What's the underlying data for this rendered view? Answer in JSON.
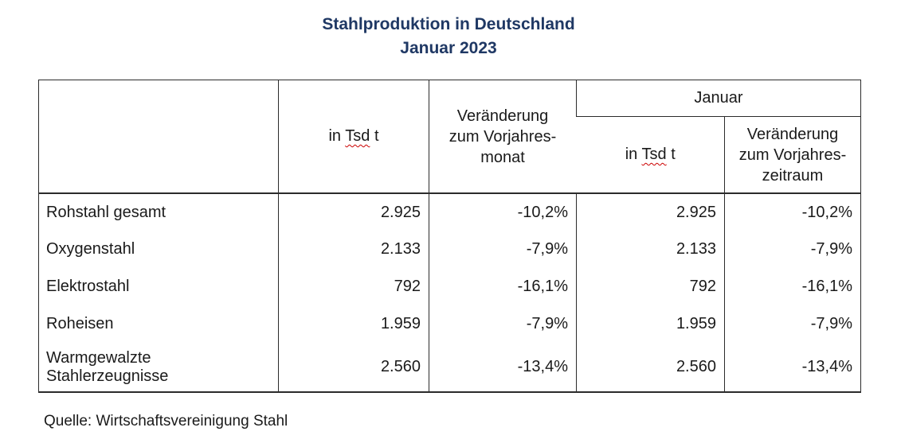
{
  "title": {
    "line1": "Stahlproduktion in Deutschland",
    "line2": "Januar 2023"
  },
  "table": {
    "unit_header": {
      "prefix": "in",
      "misspelled_word": "Tsd",
      "suffix": "t"
    },
    "change_month_header": {
      "line1": "Veränderung",
      "line2": "zum Vorjahres-",
      "line3": "monat"
    },
    "group_header": "Januar",
    "change_period_header": {
      "line1": "Veränderung",
      "line2": "zum Vorjahres-",
      "line3": "zeitraum"
    },
    "rows": [
      {
        "label": "Rohstahl gesamt",
        "tsd": "2.925",
        "change_month": "-10,2%",
        "tsd_jan": "2.925",
        "change_period": "-10,2%"
      },
      {
        "label": "Oxygenstahl",
        "tsd": "2.133",
        "change_month": "-7,9%",
        "tsd_jan": "2.133",
        "change_period": "-7,9%"
      },
      {
        "label": "Elektrostahl",
        "tsd": "792",
        "change_month": "-16,1%",
        "tsd_jan": "792",
        "change_period": "-16,1%"
      },
      {
        "label": "Roheisen",
        "tsd": "1.959",
        "change_month": "-7,9%",
        "tsd_jan": "1.959",
        "change_period": "-7,9%"
      },
      {
        "label": "Warmgewalzte\nStahlerzeugnisse",
        "tsd": "2.560",
        "change_month": "-13,4%",
        "tsd_jan": "2.560",
        "change_period": "-13,4%"
      }
    ]
  },
  "footer": {
    "source": "Quelle: Wirtschaftsvereinigung Stahl"
  },
  "colors": {
    "title": "#1f3864",
    "border": "#2b2b2b",
    "text": "#1a1a1a",
    "spellcheck_underline": "#cc0000"
  }
}
